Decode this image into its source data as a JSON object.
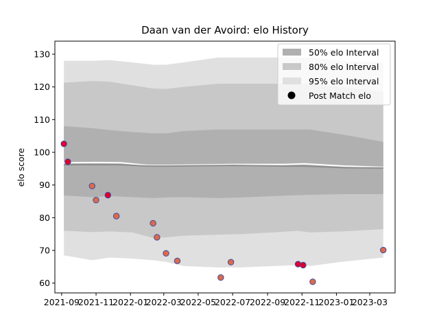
{
  "chart_data": {
    "type": "area",
    "title": "Daan van der Avoird: elo History",
    "xlabel": "",
    "ylabel": "elo score",
    "xlim": [
      "2021-08-20",
      "2023-04-15"
    ],
    "ylim": [
      57,
      134
    ],
    "grid": false,
    "legend_position": "top-right",
    "x_ticks": [
      "2021-09",
      "2021-11",
      "2022-01",
      "2022-03",
      "2022-05",
      "2022-07",
      "2022-09",
      "2022-11",
      "2023-01",
      "2023-03"
    ],
    "y_ticks": [
      60,
      70,
      80,
      90,
      100,
      110,
      120,
      130
    ],
    "legend": [
      {
        "label": "50% elo Interval",
        "color": "#b0b0b0",
        "marker": "patch"
      },
      {
        "label": "80% elo Interval",
        "color": "#c8c8c8",
        "marker": "patch"
      },
      {
        "label": "95% elo Interval",
        "color": "#e0e0e0",
        "marker": "patch"
      },
      {
        "label": "Post Match elo",
        "color": "#000000",
        "marker": "circle"
      }
    ],
    "band_x": [
      "2021-09-05",
      "2021-10-25",
      "2021-11-25",
      "2022-01-05",
      "2022-02-10",
      "2022-03-05",
      "2022-04-05",
      "2022-06-05",
      "2022-07-15",
      "2022-09-10",
      "2022-10-25",
      "2022-11-15",
      "2023-01-10",
      "2023-03-25"
    ],
    "band_95": {
      "upper": [
        128,
        128,
        128.2,
        127.5,
        126.8,
        126.8,
        127.5,
        129,
        129,
        129,
        129,
        129,
        128,
        127.5
      ],
      "lower": [
        68.5,
        67,
        67.8,
        67.5,
        67,
        66.5,
        65.2,
        64.8,
        64.8,
        65.2,
        65.5,
        65.2,
        66.5,
        67.8
      ]
    },
    "band_80": {
      "upper": [
        121.3,
        121.8,
        121.6,
        120.5,
        119.5,
        119.4,
        120,
        121,
        121,
        121,
        121,
        121,
        120,
        118.5
      ],
      "lower": [
        76,
        75.6,
        75.8,
        75.5,
        73.8,
        74,
        74.5,
        74.8,
        75,
        75.5,
        76,
        75.5,
        75.8,
        76.5
      ]
    },
    "band_50": {
      "upper": [
        108,
        107.4,
        106.8,
        106.2,
        105.8,
        105.8,
        106.5,
        107,
        107,
        107,
        107,
        107,
        105.5,
        103.2
      ],
      "lower": [
        86.8,
        86.3,
        86.6,
        86.3,
        86,
        86.2,
        86.3,
        86,
        86.2,
        86.6,
        86.9,
        87,
        87.2,
        87.2
      ]
    },
    "mean_line": {
      "x": [
        "2021-09-05",
        "2021-11-01",
        "2021-12-15",
        "2022-02-01",
        "2022-03-15",
        "2022-07-01",
        "2022-10-01",
        "2022-11-05",
        "2023-01-15",
        "2023-03-25"
      ],
      "values": [
        96.8,
        96.9,
        96.8,
        96.0,
        96.0,
        96.3,
        96.3,
        96.5,
        95.8,
        95.4
      ],
      "color": "#ffffff"
    },
    "median_line": {
      "x": [
        "2021-09-05",
        "2021-11-01",
        "2021-12-15",
        "2022-02-01",
        "2022-03-15",
        "2022-07-01",
        "2022-10-01",
        "2022-11-05",
        "2023-01-15",
        "2023-03-25"
      ],
      "values": [
        96.2,
        96.2,
        96.2,
        95.8,
        95.8,
        96.0,
        95.8,
        95.8,
        95.3,
        95.2
      ],
      "color": "#8c8c8c"
    },
    "points": {
      "name": "Post Match elo",
      "x": [
        "2021-09-05",
        "2021-09-12",
        "2021-10-25",
        "2021-11-01",
        "2021-11-22",
        "2021-12-07",
        "2022-02-10",
        "2022-02-17",
        "2022-03-05",
        "2022-03-25",
        "2022-06-10",
        "2022-06-28",
        "2022-10-25",
        "2022-11-03",
        "2022-11-20",
        "2023-03-25"
      ],
      "values": [
        102.6,
        97.1,
        89.7,
        85.4,
        86.9,
        80.5,
        78.3,
        74.0,
        69.1,
        66.8,
        61.7,
        66.4,
        65.8,
        65.5,
        60.4,
        70.1
      ],
      "colors": [
        "#e0002b",
        "#e0002b",
        "#dd6a4a",
        "#dd6a4a",
        "#e0002b",
        "#dd6a4a",
        "#dd6a4a",
        "#dd6a4a",
        "#dd6a4a",
        "#dd6a4a",
        "#dd6a4a",
        "#dd6a4a",
        "#e0002b",
        "#e0002b",
        "#dd6a4a",
        "#dd6a4a"
      ],
      "edge_color": "#3b4ba0"
    }
  }
}
